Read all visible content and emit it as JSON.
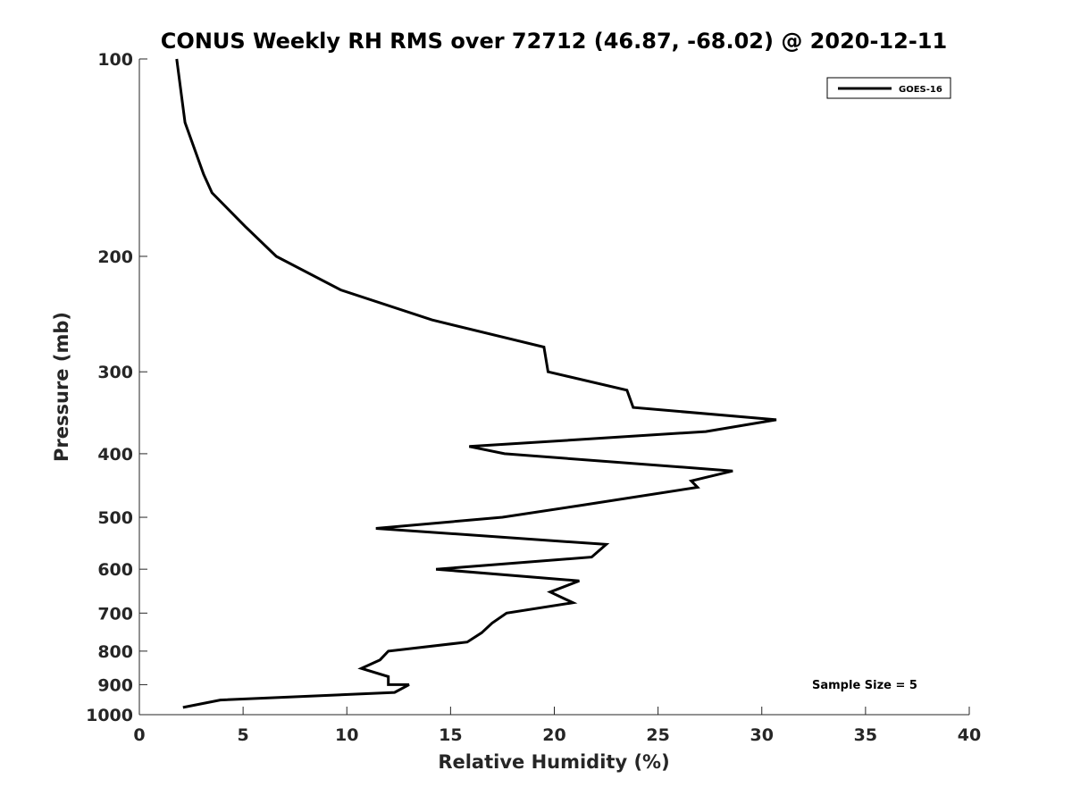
{
  "chart_data": {
    "type": "line",
    "title": "CONUS Weekly RH RMS over 72712 (46.87, -68.02) @ 2020-12-11",
    "xlabel": "Relative Humidity (%)",
    "ylabel": "Pressure (mb)",
    "xlim": [
      0,
      40
    ],
    "ylim": [
      1000,
      100
    ],
    "yscale": "log",
    "xticks": [
      0,
      5,
      10,
      15,
      20,
      25,
      30,
      35,
      40
    ],
    "yticks": [
      100,
      200,
      300,
      400,
      500,
      600,
      700,
      800,
      900,
      1000
    ],
    "grid": false,
    "legend_position": "top-right",
    "annotation": "Sample Size = 5",
    "series": [
      {
        "name": "GOES-16",
        "color": "#000000",
        "x": [
          1.8,
          2.2,
          3.1,
          3.5,
          5.1,
          6.6,
          9.7,
          14.1,
          19.5,
          19.7,
          23.5,
          23.8,
          30.7,
          27.3,
          15.9,
          17.6,
          28.6,
          26.6,
          26.9,
          21.2,
          17.5,
          11.4,
          22.5,
          21.8,
          14.3,
          21.2,
          19.8,
          20.9,
          17.7,
          17.0,
          16.5,
          15.8,
          12.0,
          11.6,
          10.7,
          12.0,
          12.0,
          13.0,
          12.3,
          3.9,
          2.1
        ],
        "y": [
          100,
          125,
          150,
          160,
          180,
          200,
          225,
          250,
          275,
          300,
          320,
          340,
          355,
          370,
          390,
          400,
          425,
          440,
          450,
          480,
          500,
          520,
          550,
          575,
          600,
          625,
          650,
          675,
          700,
          725,
          750,
          775,
          800,
          825,
          850,
          875,
          900,
          900,
          925,
          950,
          975
        ]
      }
    ]
  }
}
